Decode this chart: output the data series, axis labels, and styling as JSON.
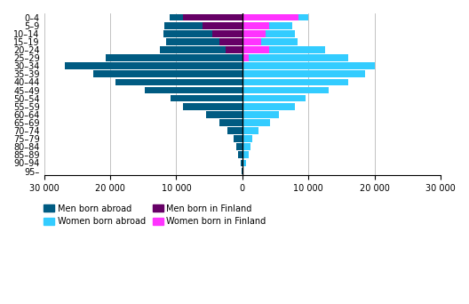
{
  "age_groups": [
    "0–4",
    "5–9",
    "10–14",
    "15–19",
    "20–24",
    "25–29",
    "30–34",
    "35–39",
    "40–44",
    "45–49",
    "50–54",
    "55–59",
    "60–64",
    "65–69",
    "70–74",
    "75–79",
    "80–84",
    "85–89",
    "90–94",
    "95–"
  ],
  "men_abroad": [
    2000,
    5800,
    7500,
    8000,
    10000,
    20700,
    26800,
    22500,
    19200,
    14800,
    10800,
    9000,
    5500,
    3500,
    2200,
    1300,
    900,
    600,
    300,
    100
  ],
  "men_finland": [
    9000,
    6000,
    4500,
    3500,
    2500,
    0,
    0,
    0,
    0,
    0,
    0,
    0,
    0,
    0,
    0,
    0,
    0,
    0,
    0,
    0
  ],
  "women_abroad": [
    1500,
    3500,
    4500,
    5500,
    8500,
    15000,
    20000,
    18500,
    16000,
    13000,
    9500,
    8000,
    5500,
    4200,
    2500,
    1500,
    1200,
    900,
    500,
    200
  ],
  "women_finland": [
    8500,
    4000,
    3500,
    2800,
    4000,
    1000,
    0,
    0,
    0,
    0,
    0,
    0,
    0,
    0,
    0,
    0,
    0,
    0,
    0,
    0
  ],
  "xlim": 30000,
  "xticks": [
    -30000,
    -20000,
    -10000,
    0,
    10000,
    20000,
    30000
  ],
  "xtick_labels": [
    "30 000",
    "20 000",
    "10 000",
    "0",
    "10 000",
    "20 000",
    "30 000"
  ],
  "color_men_abroad": "#005B82",
  "color_women_abroad": "#33CCFF",
  "color_men_finland": "#660066",
  "color_women_finland": "#FF33FF",
  "legend_labels": [
    "Men born abroad",
    "Women born abroad",
    "Men born in Finland",
    "Women born in Finland"
  ],
  "bar_height": 0.85
}
